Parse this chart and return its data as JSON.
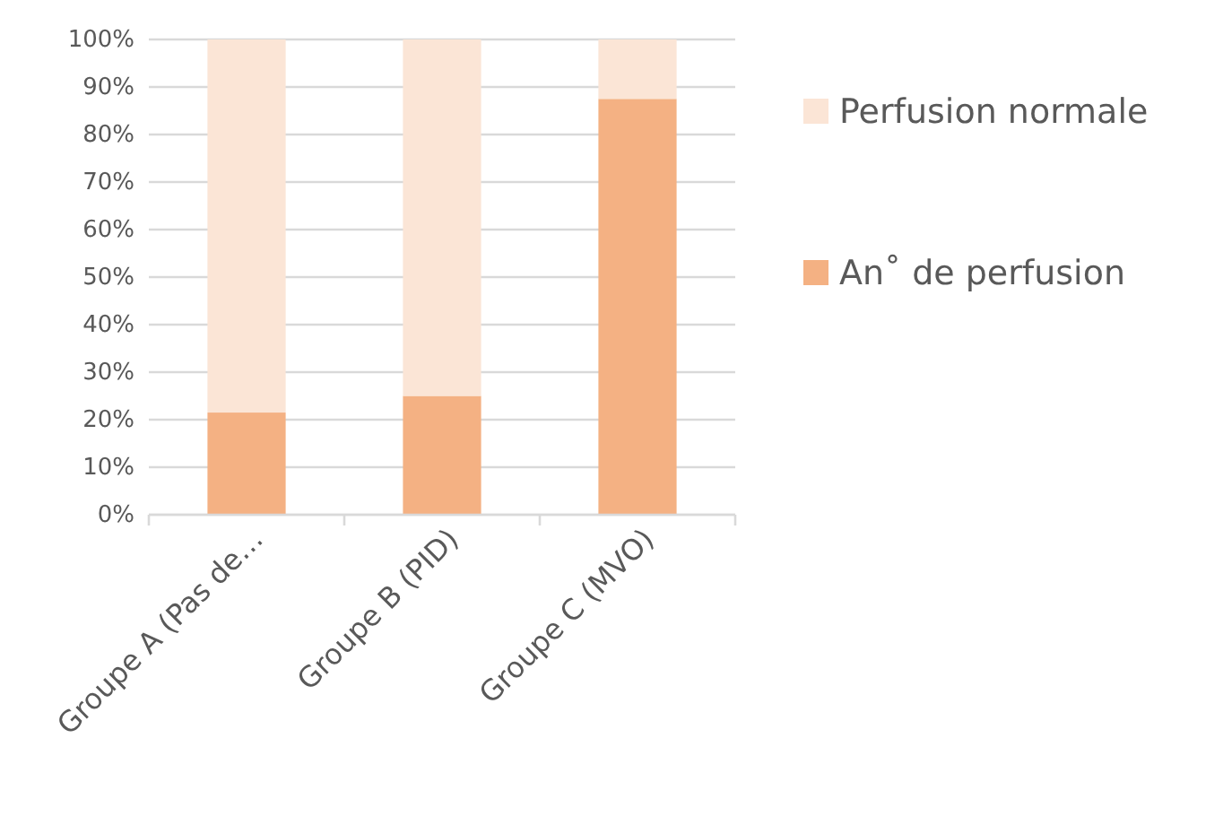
{
  "chart_data": {
    "type": "bar",
    "stacked": true,
    "categories": [
      "Groupe A (Pas de…",
      "Groupe B (PID)",
      "Groupe C (MVO)"
    ],
    "series": [
      {
        "name": "An˚ de perfusion",
        "color": "#f4b183",
        "values": [
          21.5,
          25,
          87.5
        ]
      },
      {
        "name": "Perfusion normale",
        "color": "#fbe5d6",
        "values": [
          78.5,
          75,
          12.5
        ]
      }
    ],
    "ylim": [
      0,
      100
    ],
    "yticks": [
      {
        "value": 0,
        "label": "0%"
      },
      {
        "value": 10,
        "label": "10%"
      },
      {
        "value": 20,
        "label": "20%"
      },
      {
        "value": 30,
        "label": "30%"
      },
      {
        "value": 40,
        "label": "40%"
      },
      {
        "value": 50,
        "label": "50%"
      },
      {
        "value": 60,
        "label": "60%"
      },
      {
        "value": 70,
        "label": "70%"
      },
      {
        "value": 80,
        "label": "80%"
      },
      {
        "value": 90,
        "label": "90%"
      },
      {
        "value": 100,
        "label": "100%"
      }
    ],
    "grid": "y",
    "legend": "right"
  }
}
